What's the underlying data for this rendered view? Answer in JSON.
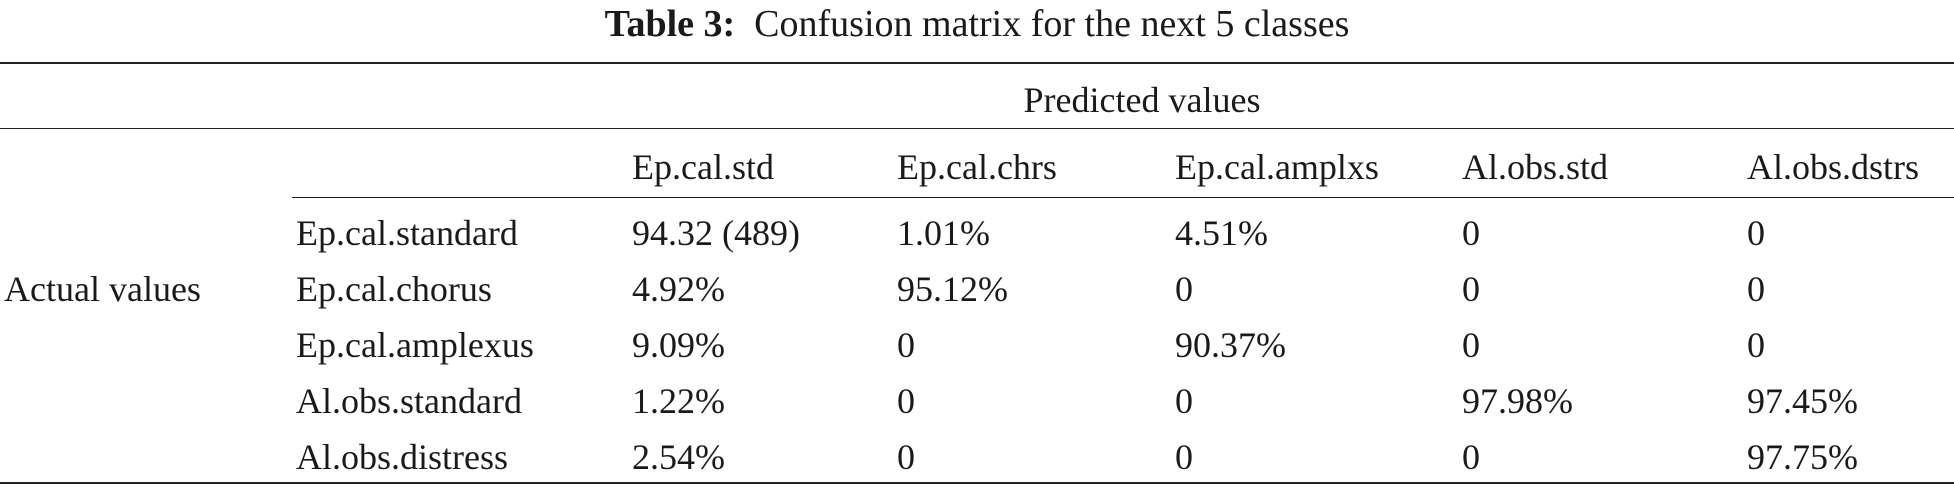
{
  "caption": {
    "label": "Table 3:",
    "text": "Confusion matrix for the next 5 classes"
  },
  "predicted_label": "Predicted values",
  "actual_label": "Actual values",
  "columns": [
    "Ep.cal.std",
    "Ep.cal.chrs",
    "Ep.cal.amplxs",
    "Al.obs.std",
    "Al.obs.dstrs"
  ],
  "rows": [
    {
      "label": "Ep.cal.standard",
      "cells": [
        "94.32 (489)",
        "1.01%",
        "4.51%",
        "0",
        "0"
      ]
    },
    {
      "label": "Ep.cal.chorus",
      "cells": [
        "4.92%",
        "95.12%",
        "0",
        "0",
        "0"
      ]
    },
    {
      "label": "Ep.cal.amplexus",
      "cells": [
        "9.09%",
        "0",
        "90.37%",
        "0",
        "0"
      ]
    },
    {
      "label": "Al.obs.standard",
      "cells": [
        "1.22%",
        "0",
        "0",
        "97.98%",
        "97.45%"
      ]
    },
    {
      "label": "Al.obs.distress",
      "cells": [
        "2.54%",
        "0",
        "0",
        "0",
        "97.75%"
      ]
    }
  ]
}
